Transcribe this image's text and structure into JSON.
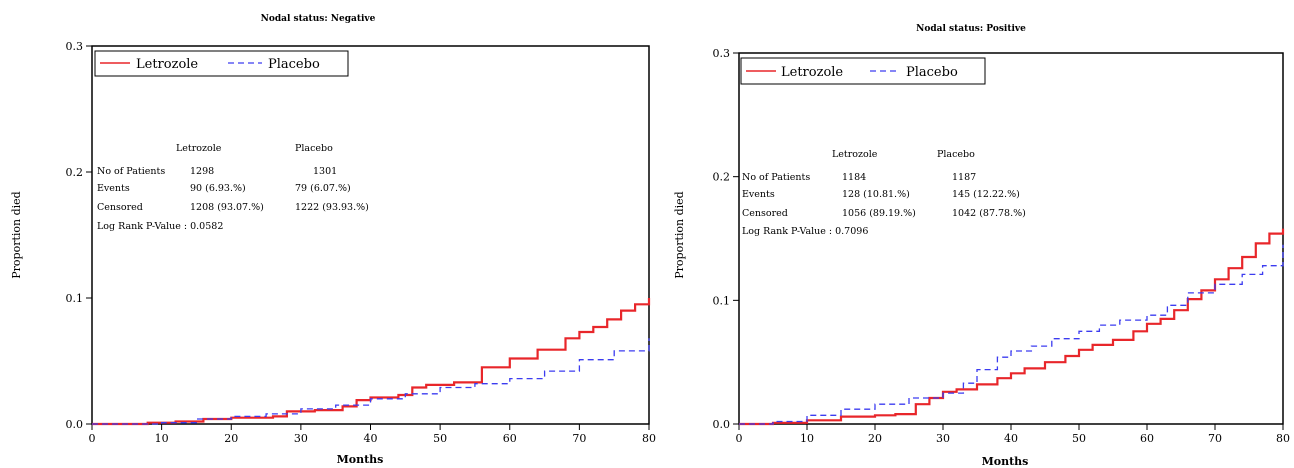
{
  "chart_data": [
    {
      "type": "line",
      "title": "Nodal status: Negative",
      "xlabel": "Months",
      "ylabel": "Proportion died",
      "xlim": [
        0,
        80
      ],
      "ylim": [
        0,
        0.3
      ],
      "xticks": [
        "0",
        "10",
        "20",
        "30",
        "40",
        "50",
        "60",
        "70",
        "80"
      ],
      "yticks": [
        "0.0",
        "0.1",
        "0.2",
        "0.3"
      ],
      "grid": false,
      "legend_position": "top-left",
      "series": [
        {
          "name": "Letrozole",
          "color": "#e8262a",
          "style": "solid",
          "x": [
            0,
            8,
            12,
            16,
            20,
            26,
            28,
            32,
            36,
            38,
            40,
            44,
            46,
            48,
            52,
            56,
            60,
            64,
            68,
            70,
            72,
            74,
            76,
            78,
            80
          ],
          "y": [
            0,
            0.001,
            0.002,
            0.004,
            0.005,
            0.006,
            0.01,
            0.011,
            0.014,
            0.019,
            0.021,
            0.023,
            0.029,
            0.031,
            0.033,
            0.045,
            0.052,
            0.059,
            0.068,
            0.073,
            0.077,
            0.083,
            0.09,
            0.095,
            0.1
          ]
        },
        {
          "name": "Placebo",
          "color": "#3c3cf0",
          "style": "dashed",
          "x": [
            0,
            10,
            15,
            20,
            25,
            30,
            35,
            40,
            45,
            50,
            55,
            60,
            65,
            70,
            75,
            80
          ],
          "y": [
            0,
            0.001,
            0.004,
            0.006,
            0.008,
            0.012,
            0.015,
            0.02,
            0.024,
            0.029,
            0.032,
            0.036,
            0.042,
            0.051,
            0.058,
            0.068
          ]
        }
      ],
      "stats_table": {
        "col_headers": [
          "Letrozole",
          "Placebo"
        ],
        "rows": [
          {
            "label": "No of Patients",
            "values": [
              "1298",
              "1301"
            ]
          },
          {
            "label": "Events",
            "values": [
              "90 (6.93.%)",
              "79 (6.07.%)"
            ]
          },
          {
            "label": "Censored",
            "values": [
              "1208 (93.07.%)",
              "1222 (93.93.%)"
            ]
          }
        ],
        "footer": "Log Rank P-Value : 0.0582"
      }
    },
    {
      "type": "line",
      "title": "Nodal status: Positive",
      "xlabel": "Months",
      "ylabel": "Proportion died",
      "xlim": [
        0,
        80
      ],
      "ylim": [
        0,
        0.3
      ],
      "xticks": [
        "0",
        "10",
        "20",
        "30",
        "40",
        "50",
        "60",
        "70",
        "80"
      ],
      "yticks": [
        "0.0",
        "0.1",
        "0.2",
        "0.3"
      ],
      "grid": false,
      "legend_position": "top-left",
      "series": [
        {
          "name": "Letrozole",
          "color": "#e8262a",
          "style": "solid",
          "x": [
            0,
            5,
            10,
            15,
            20,
            23,
            26,
            28,
            30,
            32,
            35,
            38,
            40,
            42,
            45,
            48,
            50,
            52,
            55,
            58,
            60,
            62,
            64,
            66,
            68,
            70,
            72,
            74,
            76,
            78,
            80
          ],
          "y": [
            0,
            0.001,
            0.003,
            0.006,
            0.007,
            0.008,
            0.016,
            0.021,
            0.026,
            0.028,
            0.032,
            0.037,
            0.041,
            0.045,
            0.05,
            0.055,
            0.06,
            0.064,
            0.068,
            0.075,
            0.081,
            0.085,
            0.092,
            0.101,
            0.108,
            0.117,
            0.126,
            0.135,
            0.146,
            0.154,
            0.158
          ]
        },
        {
          "name": "Placebo",
          "color": "#3c3cf0",
          "style": "dashed",
          "x": [
            0,
            5,
            10,
            15,
            20,
            25,
            30,
            33,
            35,
            38,
            40,
            43,
            46,
            50,
            53,
            56,
            60,
            63,
            66,
            70,
            74,
            77,
            80
          ],
          "y": [
            0,
            0.002,
            0.007,
            0.012,
            0.016,
            0.021,
            0.025,
            0.033,
            0.044,
            0.054,
            0.059,
            0.063,
            0.069,
            0.075,
            0.08,
            0.084,
            0.088,
            0.096,
            0.106,
            0.113,
            0.121,
            0.128,
            0.145
          ]
        }
      ],
      "stats_table": {
        "col_headers": [
          "Letrozole",
          "Placebo"
        ],
        "rows": [
          {
            "label": "No of Patients",
            "values": [
              "1184",
              "1187"
            ]
          },
          {
            "label": "Events",
            "values": [
              "128 (10.81.%)",
              "145 (12.22.%)"
            ]
          },
          {
            "label": "Censored",
            "values": [
              "1056 (89.19.%)",
              "1042 (87.78.%)"
            ]
          }
        ],
        "footer": "Log Rank P-Value : 0.7096"
      }
    }
  ]
}
